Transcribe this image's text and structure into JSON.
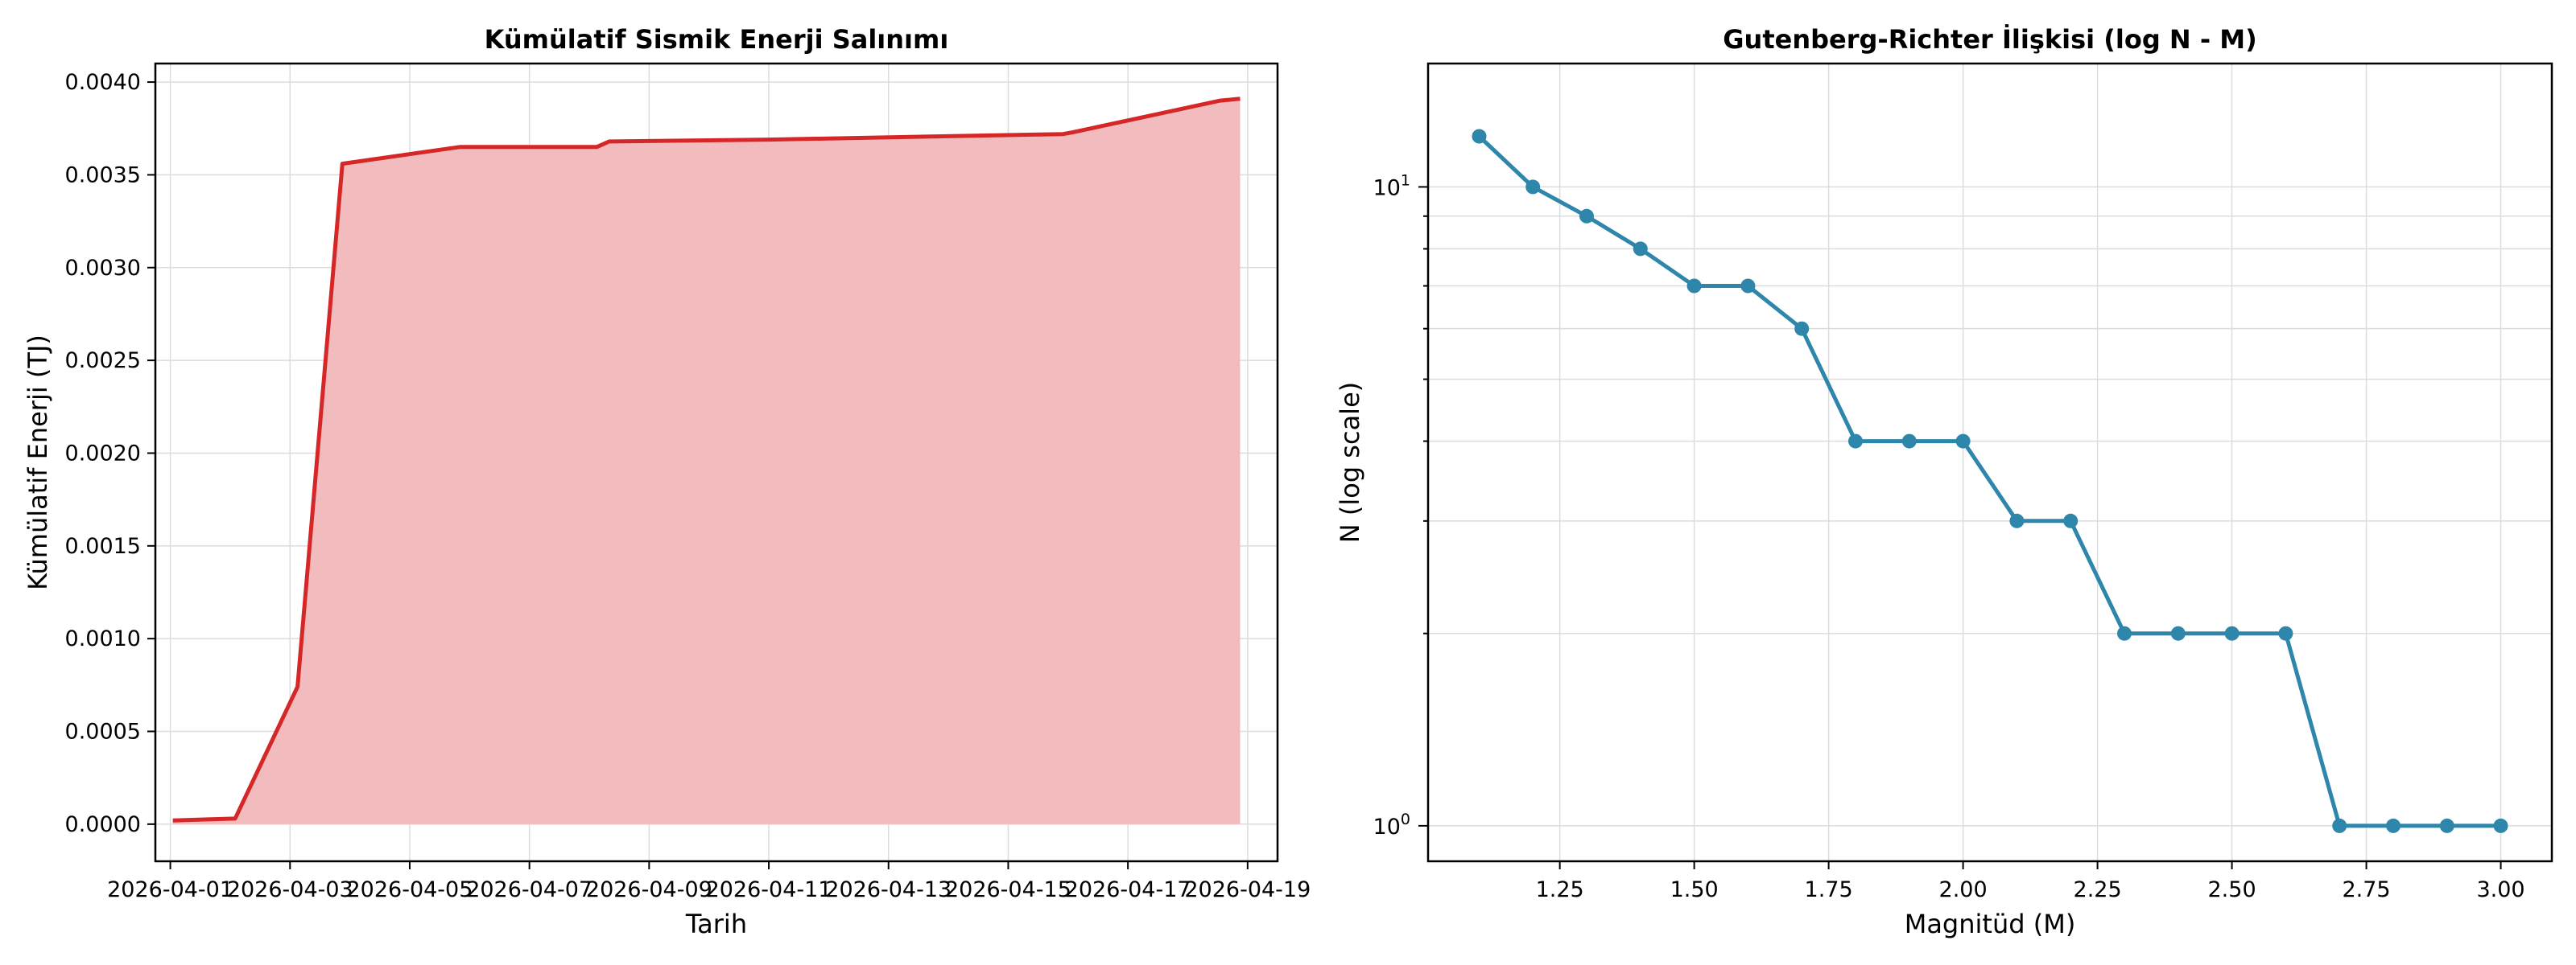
{
  "colors": {
    "energy_line": "#d62728",
    "energy_fill": "#f2bcbe",
    "gr_line": "#2e86ab",
    "grid": "#dcdcdc"
  },
  "chart_data": [
    {
      "type": "area",
      "title": "Kümülatif Sismik Enerji Salınımı",
      "xlabel": "Tarih",
      "ylabel": "Kümülatif Enerji (TJ)",
      "x_type": "date",
      "xlim": [
        "2026-03-31T18:00",
        "2026-04-19T12:00"
      ],
      "ylim": [
        -0.0002,
        0.0041
      ],
      "grid": true,
      "x_ticks": [
        "2026-04-01",
        "2026-04-03",
        "2026-04-05",
        "2026-04-07",
        "2026-04-09",
        "2026-04-11",
        "2026-04-13",
        "2026-04-15",
        "2026-04-17",
        "2026-04-19"
      ],
      "y_ticks": [
        "0.0000",
        "0.0005",
        "0.0010",
        "0.0015",
        "0.0020",
        "0.0025",
        "0.0030",
        "0.0035",
        "0.0040"
      ],
      "series": [
        {
          "points": [
            [
              "2026-04-01T01:00",
              2e-05
            ],
            [
              "2026-04-02T02:00",
              3e-05
            ],
            [
              "2026-04-03T03:00",
              0.00074
            ],
            [
              "2026-04-03T21:00",
              0.00356
            ],
            [
              "2026-04-05T20:00",
              0.00365
            ],
            [
              "2026-04-08T03:00",
              0.00365
            ],
            [
              "2026-04-08T08:00",
              0.00368
            ],
            [
              "2026-04-11T00:00",
              0.00369
            ],
            [
              "2026-04-15T22:00",
              0.00372
            ],
            [
              "2026-04-16T02:00",
              0.00373
            ],
            [
              "2026-04-18T13:00",
              0.0039
            ],
            [
              "2026-04-18T21:00",
              0.00391
            ]
          ]
        }
      ]
    },
    {
      "type": "line",
      "title": "Gutenberg-Richter İlişkisi (log N - M)",
      "xlabel": "Magnitüd (M)",
      "ylabel": "N (log scale)",
      "y_scale": "log",
      "xlim": [
        1.005,
        3.095
      ],
      "ylim": [
        0.88,
        15.6
      ],
      "grid": true,
      "x_ticks": [
        "1.25",
        "1.50",
        "1.75",
        "2.00",
        "2.25",
        "2.50",
        "2.75",
        "3.00"
      ],
      "y_ticks": [
        "10^0",
        "10^1"
      ],
      "series": [
        {
          "x": [
            1.1,
            1.2,
            1.3,
            1.4,
            1.5,
            1.6,
            1.7,
            1.8,
            1.9,
            2.0,
            2.1,
            2.2,
            2.3,
            2.4,
            2.5,
            2.6,
            2.7,
            2.8,
            2.9,
            3.0
          ],
          "y": [
            12,
            10,
            9,
            8,
            7,
            7,
            6,
            4,
            4,
            4,
            3,
            3,
            2,
            2,
            2,
            2,
            1,
            1,
            1,
            1
          ]
        }
      ]
    }
  ]
}
